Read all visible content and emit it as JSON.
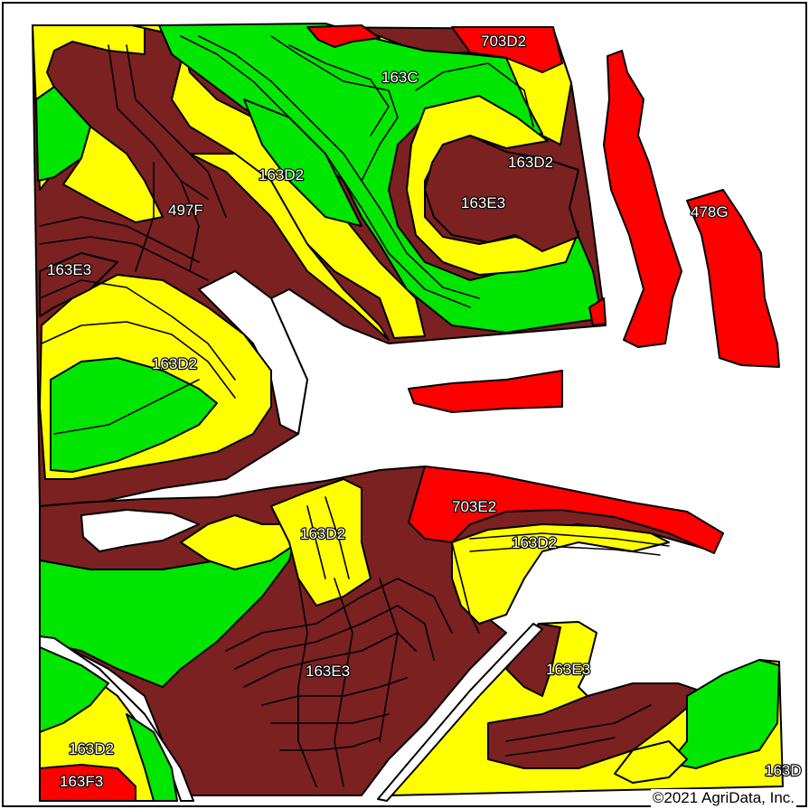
{
  "map": {
    "colors": {
      "brown": "#7b2121",
      "yellow": "#ffff00",
      "green": "#00e600",
      "red": "#ff0000",
      "background": "#ffffff",
      "outline": "#000000"
    },
    "labels": [
      {
        "id": "703d2-top",
        "text": "703D2"
      },
      {
        "id": "163c",
        "text": "163C"
      },
      {
        "id": "163d2-upper-center",
        "text": "163D2"
      },
      {
        "id": "163d2-upper-right",
        "text": "163D2"
      },
      {
        "id": "163e3-upper-right",
        "text": "163E3"
      },
      {
        "id": "497f",
        "text": "497F"
      },
      {
        "id": "478g",
        "text": "478G"
      },
      {
        "id": "163e3-left",
        "text": "163E3"
      },
      {
        "id": "163d2-left",
        "text": "163D2"
      },
      {
        "id": "703e2",
        "text": "703E2"
      },
      {
        "id": "163d2-lower-center",
        "text": "163D2"
      },
      {
        "id": "163d2-lower-right",
        "text": "163D2"
      },
      {
        "id": "163e3-bottom-center",
        "text": "163E3"
      },
      {
        "id": "163e3-bottom-right",
        "text": "163E3"
      },
      {
        "id": "163d2-bottom-left",
        "text": "163D2"
      },
      {
        "id": "163f3",
        "text": "163F3"
      },
      {
        "id": "163d-edge",
        "text": "163D"
      }
    ],
    "copyright": "©2021 AgriData, Inc."
  }
}
